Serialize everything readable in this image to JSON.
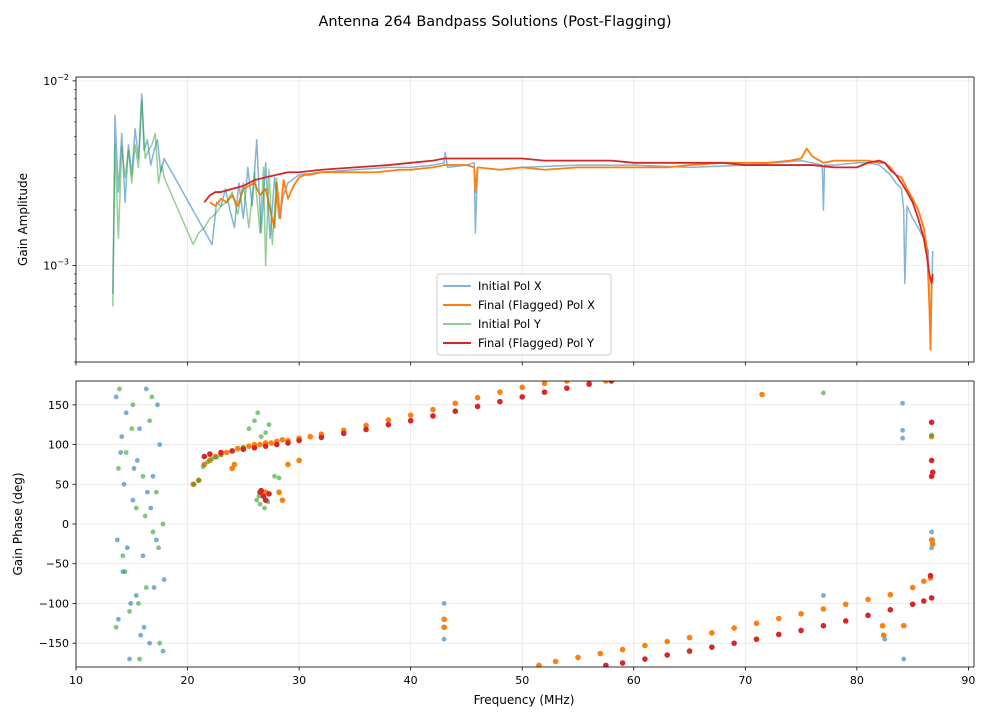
{
  "figure": {
    "suptitle": "Antenna 264 Bandpass Solutions (Post-Flagging)"
  },
  "chart_data": [
    {
      "type": "line",
      "title": "",
      "xlabel": "",
      "ylabel": "Gain Amplitude",
      "yscale": "log",
      "xlim": [
        10,
        90.5
      ],
      "ylim": [
        0.0003,
        0.0105
      ],
      "grid": true,
      "legend_position": "lower-center",
      "x_ticks": [
        10,
        20,
        30,
        40,
        50,
        60,
        70,
        80,
        90
      ],
      "y_major_ticks": [
        {
          "value": 0.001,
          "base": "10",
          "exp": "−3"
        },
        {
          "value": 0.01,
          "base": "10",
          "exp": "−2"
        }
      ],
      "series": [
        {
          "name": "Initial Pol X",
          "color": "#1f77b4",
          "alpha": 0.55,
          "x": [
            13.3,
            13.5,
            13.8,
            14.1,
            14.4,
            14.7,
            15.0,
            15.3,
            15.6,
            15.9,
            16.1,
            16.4,
            16.7,
            17.0,
            17.3,
            17.6,
            17.9,
            22.2,
            22.6,
            23.0,
            23.4,
            23.8,
            24.2,
            24.6,
            25.0,
            25.4,
            25.8,
            26.2,
            26.6,
            27.0,
            27.4,
            27.8,
            28.2,
            28.6,
            29.0,
            30.0,
            32.0,
            35.0,
            38.0,
            40.0,
            42.0,
            43.0,
            43.1,
            43.3,
            45.0,
            45.7,
            45.8,
            46.0,
            48.0,
            50.0,
            55.0,
            60.0,
            65.0,
            70.0,
            75.0,
            76.0,
            76.9,
            77.0,
            77.1,
            78.0,
            80.0,
            81.0,
            82.0,
            82.5,
            83.0,
            83.5,
            84.0,
            84.2,
            84.3,
            84.5,
            85.0,
            85.5,
            86.0,
            86.4,
            86.6,
            86.8
          ],
          "values": [
            0.0007,
            0.0065,
            0.0025,
            0.0052,
            0.0022,
            0.0045,
            0.0031,
            0.0055,
            0.0038,
            0.0085,
            0.0042,
            0.0048,
            0.0035,
            0.0042,
            0.0048,
            0.0032,
            0.0038,
            0.0013,
            0.0022,
            0.0021,
            0.0026,
            0.002,
            0.0016,
            0.0028,
            0.0018,
            0.0034,
            0.0021,
            0.0048,
            0.0015,
            0.0036,
            0.0014,
            0.003,
            0.0018,
            0.0024,
            0.0028,
            0.0031,
            0.0032,
            0.0033,
            0.0034,
            0.0034,
            0.0035,
            0.0036,
            0.0041,
            0.0034,
            0.0035,
            0.0036,
            0.0015,
            0.0034,
            0.0033,
            0.0034,
            0.0035,
            0.0035,
            0.0034,
            0.0035,
            0.0037,
            0.0036,
            0.0035,
            0.002,
            0.0035,
            0.0035,
            0.0036,
            0.0036,
            0.0035,
            0.0033,
            0.0031,
            0.0028,
            0.0026,
            0.002,
            0.0008,
            0.0021,
            0.0018,
            0.0016,
            0.0014,
            0.0012,
            0.0004,
            0.0012
          ]
        },
        {
          "name": "Final (Flagged) Pol X",
          "color": "#ff7f0e",
          "alpha": 1.0,
          "x": [
            22.0,
            22.5,
            23.0,
            23.5,
            24.0,
            24.5,
            25.0,
            25.5,
            26.0,
            26.5,
            27.0,
            27.5,
            27.8,
            28.0,
            28.3,
            28.6,
            29.0,
            29.5,
            30.0,
            30.5,
            31.0,
            32.0,
            33.0,
            35.0,
            37.0,
            39.0,
            40.0,
            42.0,
            43.0,
            45.0,
            45.7,
            45.8,
            46.0,
            48.0,
            50.0,
            52.0,
            55.0,
            57.0,
            60.0,
            63.0,
            65.0,
            68.0,
            70.0,
            72.0,
            74.0,
            75.0,
            75.5,
            76.0,
            77.0,
            78.0,
            80.0,
            81.0,
            82.0,
            82.5,
            83.0,
            83.5,
            84.0,
            84.5,
            85.0,
            85.5,
            86.0,
            86.3,
            86.5,
            86.6,
            86.7,
            86.8
          ],
          "values": [
            0.0022,
            0.0021,
            0.0023,
            0.0022,
            0.0024,
            0.0021,
            0.0026,
            0.0027,
            0.0028,
            0.0024,
            0.0026,
            0.0019,
            0.0016,
            0.0028,
            0.0018,
            0.0029,
            0.0023,
            0.0027,
            0.003,
            0.0031,
            0.0031,
            0.0032,
            0.0032,
            0.0032,
            0.0032,
            0.0033,
            0.0033,
            0.0034,
            0.0035,
            0.0035,
            0.0034,
            0.0025,
            0.0034,
            0.0033,
            0.0034,
            0.0033,
            0.0034,
            0.0034,
            0.0034,
            0.0034,
            0.0035,
            0.0036,
            0.0036,
            0.0036,
            0.0037,
            0.0038,
            0.0043,
            0.0039,
            0.0036,
            0.0037,
            0.0037,
            0.0037,
            0.0036,
            0.0036,
            0.0034,
            0.0031,
            0.003,
            0.0026,
            0.0023,
            0.002,
            0.0016,
            0.0012,
            0.0006,
            0.00035,
            0.0008,
            0.0009
          ]
        },
        {
          "name": "Initial Pol Y",
          "color": "#2ca02c",
          "alpha": 0.5,
          "x": [
            13.3,
            13.5,
            13.8,
            14.1,
            14.4,
            14.7,
            15.0,
            15.3,
            15.6,
            15.9,
            16.2,
            16.5,
            16.8,
            17.1,
            17.4,
            17.7,
            17.9,
            20.5,
            21.0,
            21.5,
            22.0,
            22.5,
            23.0,
            23.5,
            24.0,
            24.5,
            25.0,
            25.5,
            26.0,
            26.5,
            26.8,
            27.0,
            27.3,
            27.6,
            28.0
          ],
          "values": [
            0.0006,
            0.0045,
            0.0014,
            0.0044,
            0.003,
            0.0042,
            0.0028,
            0.0045,
            0.0034,
            0.0078,
            0.0038,
            0.0042,
            0.0045,
            0.0052,
            0.0028,
            0.0035,
            0.003,
            0.0013,
            0.0015,
            0.0016,
            0.0018,
            0.0019,
            0.0021,
            0.0022,
            0.0025,
            0.0019,
            0.0028,
            0.0016,
            0.0032,
            0.0015,
            0.0034,
            0.001,
            0.0033,
            0.0013,
            0.003
          ]
        },
        {
          "name": "Final (Flagged) Pol Y",
          "color": "#d62728",
          "alpha": 1.0,
          "x": [
            21.5,
            22.0,
            22.5,
            23.0,
            24.0,
            25.0,
            26.0,
            27.0,
            28.0,
            29.0,
            30.0,
            32.0,
            35.0,
            38.0,
            40.0,
            42.0,
            43.0,
            45.0,
            47.0,
            50.0,
            52.0,
            55.0,
            58.0,
            60.0,
            63.0,
            65.0,
            68.0,
            70.0,
            72.0,
            74.0,
            75.0,
            76.0,
            78.0,
            80.0,
            81.0,
            82.0,
            82.5,
            83.0,
            83.5,
            84.0,
            84.5,
            85.0,
            85.5,
            86.0,
            86.3,
            86.5,
            86.7,
            86.8
          ],
          "values": [
            0.0022,
            0.0024,
            0.0025,
            0.0025,
            0.0026,
            0.0027,
            0.0029,
            0.003,
            0.0031,
            0.0032,
            0.0032,
            0.0033,
            0.0034,
            0.0035,
            0.0036,
            0.0037,
            0.0038,
            0.0038,
            0.0038,
            0.0038,
            0.0037,
            0.0037,
            0.0037,
            0.0036,
            0.0036,
            0.0036,
            0.0036,
            0.0035,
            0.0035,
            0.0035,
            0.0035,
            0.0035,
            0.0034,
            0.0034,
            0.0036,
            0.0037,
            0.0036,
            0.0033,
            0.0031,
            0.0028,
            0.0025,
            0.0022,
            0.0018,
            0.0014,
            0.0011,
            0.0009,
            0.0008,
            0.0009
          ]
        }
      ]
    },
    {
      "type": "scatter",
      "title": "",
      "xlabel": "Frequency (MHz)",
      "ylabel": "Gain Phase (deg)",
      "xlim": [
        10,
        90.5
      ],
      "ylim": [
        -180,
        180
      ],
      "grid": true,
      "x_ticks": [
        10,
        20,
        30,
        40,
        50,
        60,
        70,
        80,
        90
      ],
      "y_ticks": [
        -150,
        -100,
        -50,
        0,
        50,
        100,
        150
      ],
      "series": [
        {
          "name": "Initial Pol X",
          "color": "#1f77b4",
          "alpha": 0.6,
          "x": [
            13.6,
            13.8,
            14.0,
            14.2,
            14.5,
            14.8,
            15.1,
            15.4,
            15.7,
            16.0,
            16.3,
            16.6,
            16.9,
            17.2,
            17.5,
            17.8,
            13.7,
            14.3,
            14.9,
            15.5,
            16.1,
            16.7,
            17.3,
            17.9,
            14.1,
            14.6,
            15.2,
            15.8,
            16.4,
            17.0,
            43.0,
            43.0,
            43.0,
            77.0,
            82.5,
            84.1,
            84.1,
            84.1,
            84.2,
            86.7,
            86.7,
            86.8
          ],
          "values": [
            160,
            -120,
            90,
            -60,
            140,
            -170,
            30,
            -90,
            120,
            -40,
            170,
            -150,
            60,
            -20,
            100,
            -160,
            -20,
            50,
            -100,
            80,
            -130,
            20,
            150,
            -70,
            110,
            -30,
            70,
            -140,
            40,
            -80,
            -100,
            -120,
            -145,
            -90,
            -145,
            152,
            118,
            108,
            -170,
            -10,
            -30,
            -20
          ]
        },
        {
          "name": "Final (Flagged) Pol X",
          "color": "#ff7f0e",
          "alpha": 1.0,
          "x": [
            20.5,
            21.0,
            21.5,
            22.0,
            22.5,
            23.0,
            23.5,
            24.0,
            24.5,
            25.0,
            25.5,
            26.0,
            26.5,
            27.0,
            27.5,
            28.0,
            28.5,
            29.0,
            30.0,
            31.0,
            32.0,
            34.0,
            36.0,
            38.0,
            40.0,
            42.0,
            44.0,
            46.0,
            48.0,
            50.0,
            52.0,
            54.0,
            56.0,
            57.5,
            51.5,
            53.0,
            55.0,
            57.0,
            59.0,
            61.0,
            63.0,
            65.0,
            67.0,
            69.0,
            71.0,
            73.0,
            75.0,
            77.0,
            79.0,
            81.0,
            83.0,
            85.0,
            86.0,
            86.6,
            24.0,
            24.2,
            27.0,
            28.2,
            28.5,
            29.0,
            30.0,
            43.0,
            43.0,
            71.5,
            82.3,
            82.4,
            84.2,
            86.7,
            86.8,
            86.7
          ],
          "values": [
            50,
            55,
            75,
            80,
            85,
            88,
            90,
            92,
            95,
            96,
            98,
            100,
            100,
            102,
            102,
            104,
            106,
            105,
            108,
            110,
            113,
            118,
            124,
            131,
            137,
            144,
            152,
            159,
            166,
            172,
            177,
            180,
            180,
            180,
            -178,
            -173,
            -168,
            -163,
            -158,
            -153,
            -148,
            -143,
            -137,
            -131,
            -125,
            -119,
            -113,
            -107,
            -101,
            -95,
            -89,
            -80,
            -72,
            -68,
            70,
            75,
            40,
            40,
            30,
            75,
            80,
            -120,
            -130,
            163,
            -128,
            -140,
            -128,
            -20,
            -25,
            110
          ]
        },
        {
          "name": "Initial Pol Y",
          "color": "#2ca02c",
          "alpha": 0.6,
          "x": [
            13.6,
            13.9,
            14.2,
            14.5,
            14.8,
            15.1,
            15.4,
            15.7,
            16.0,
            16.3,
            16.6,
            16.9,
            17.2,
            17.5,
            17.8,
            13.8,
            14.4,
            15.0,
            15.6,
            16.2,
            16.8,
            17.4,
            20.6,
            21.0,
            21.4,
            21.8,
            22.2,
            22.6,
            23.0,
            24.0,
            25.0,
            25.5,
            26.0,
            26.3,
            26.6,
            27.0,
            27.3,
            27.8,
            28.2,
            26.2,
            26.5,
            26.9,
            27.2,
            26.4,
            77.0,
            86.7
          ],
          "values": [
            -130,
            170,
            -40,
            90,
            -110,
            150,
            20,
            -170,
            60,
            -80,
            130,
            -10,
            40,
            -150,
            0,
            70,
            -60,
            120,
            -100,
            10,
            160,
            -30,
            50,
            55,
            72,
            78,
            82,
            84,
            87,
            92,
            96,
            120,
            130,
            140,
            110,
            115,
            125,
            60,
            58,
            30,
            25,
            20,
            28,
            35,
            165,
            112
          ]
        },
        {
          "name": "Final (Flagged) Pol Y",
          "color": "#d62728",
          "alpha": 1.0,
          "x": [
            21.5,
            22.0,
            23.0,
            24.0,
            25.0,
            26.0,
            27.0,
            28.0,
            29.0,
            30.0,
            32.0,
            34.0,
            36.0,
            38.0,
            40.0,
            42.0,
            44.0,
            46.0,
            48.0,
            50.0,
            52.0,
            54.0,
            56.0,
            58.0,
            57.5,
            59.0,
            61.0,
            63.0,
            65.0,
            67.0,
            69.0,
            71.0,
            73.0,
            75.0,
            77.0,
            79.0,
            81.0,
            83.0,
            85.0,
            86.0,
            86.7,
            26.5,
            26.8,
            27.0,
            27.3,
            26.6,
            86.7,
            86.8,
            86.7,
            86.6,
            86.7
          ],
          "values": [
            85,
            88,
            90,
            92,
            94,
            96,
            98,
            100,
            102,
            105,
            109,
            114,
            119,
            125,
            130,
            136,
            142,
            148,
            154,
            160,
            166,
            171,
            176,
            180,
            -178,
            -175,
            -170,
            -165,
            -160,
            -155,
            -150,
            -145,
            -139,
            -134,
            -128,
            -122,
            -115,
            -108,
            -101,
            -97,
            -93,
            40,
            35,
            30,
            38,
            42,
            60,
            65,
            80,
            -65,
            128
          ]
        }
      ]
    }
  ]
}
